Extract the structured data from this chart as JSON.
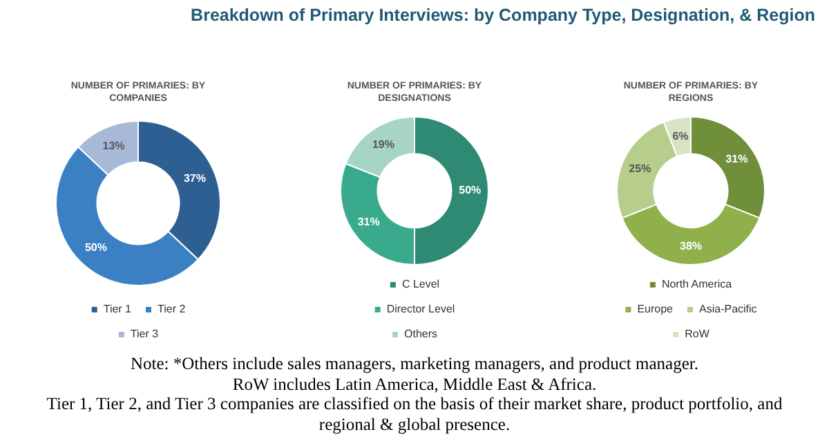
{
  "chart_data": [
    {
      "type": "other",
      "title": "Breakdown of Primary Interviews: by Company Type, Designation, & Region"
    },
    {
      "type": "donut",
      "title": "NUMBER OF PRIMARIES: BY COMPANIES",
      "categories": [
        "Tier 1",
        "Tier 2",
        "Tier 3"
      ],
      "values": [
        37,
        50,
        13
      ],
      "value_labels": [
        "37%",
        "50%",
        "13%"
      ],
      "colors": [
        "#2d5f92",
        "#3b80c3",
        "#a8b9d8"
      ],
      "legend": "bottom"
    },
    {
      "type": "donut",
      "title": "NUMBER OF PRIMARIES: BY DESIGNATIONS",
      "categories": [
        "C Level",
        "Director Level",
        "Others"
      ],
      "values": [
        50,
        31,
        19
      ],
      "value_labels": [
        "50%",
        "31%",
        "19%"
      ],
      "colors": [
        "#2e8a72",
        "#3aaa8c",
        "#a6d4c5"
      ],
      "legend": "bottom"
    },
    {
      "type": "donut",
      "title": "NUMBER OF PRIMARIES: BY REGIONS",
      "categories": [
        "North America",
        "Europe",
        "Asia-Pacific",
        "RoW"
      ],
      "values": [
        31,
        38,
        25,
        6
      ],
      "value_labels": [
        "31%",
        "38%",
        "25%",
        "6%"
      ],
      "colors": [
        "#6f8f3b",
        "#8fb04b",
        "#b6cd8b",
        "#d8e3c4"
      ],
      "legend": "bottom"
    },
    {
      "type": "other",
      "annotations": [
        "Note: *Others include sales managers, marketing managers, and product manager.",
        "RoW includes Latin America, Middle East & Africa.",
        "Tier 1, Tier 2, and Tier 3 companies are classified on the basis of their market share, product portfolio, and regional & global presence."
      ]
    }
  ]
}
